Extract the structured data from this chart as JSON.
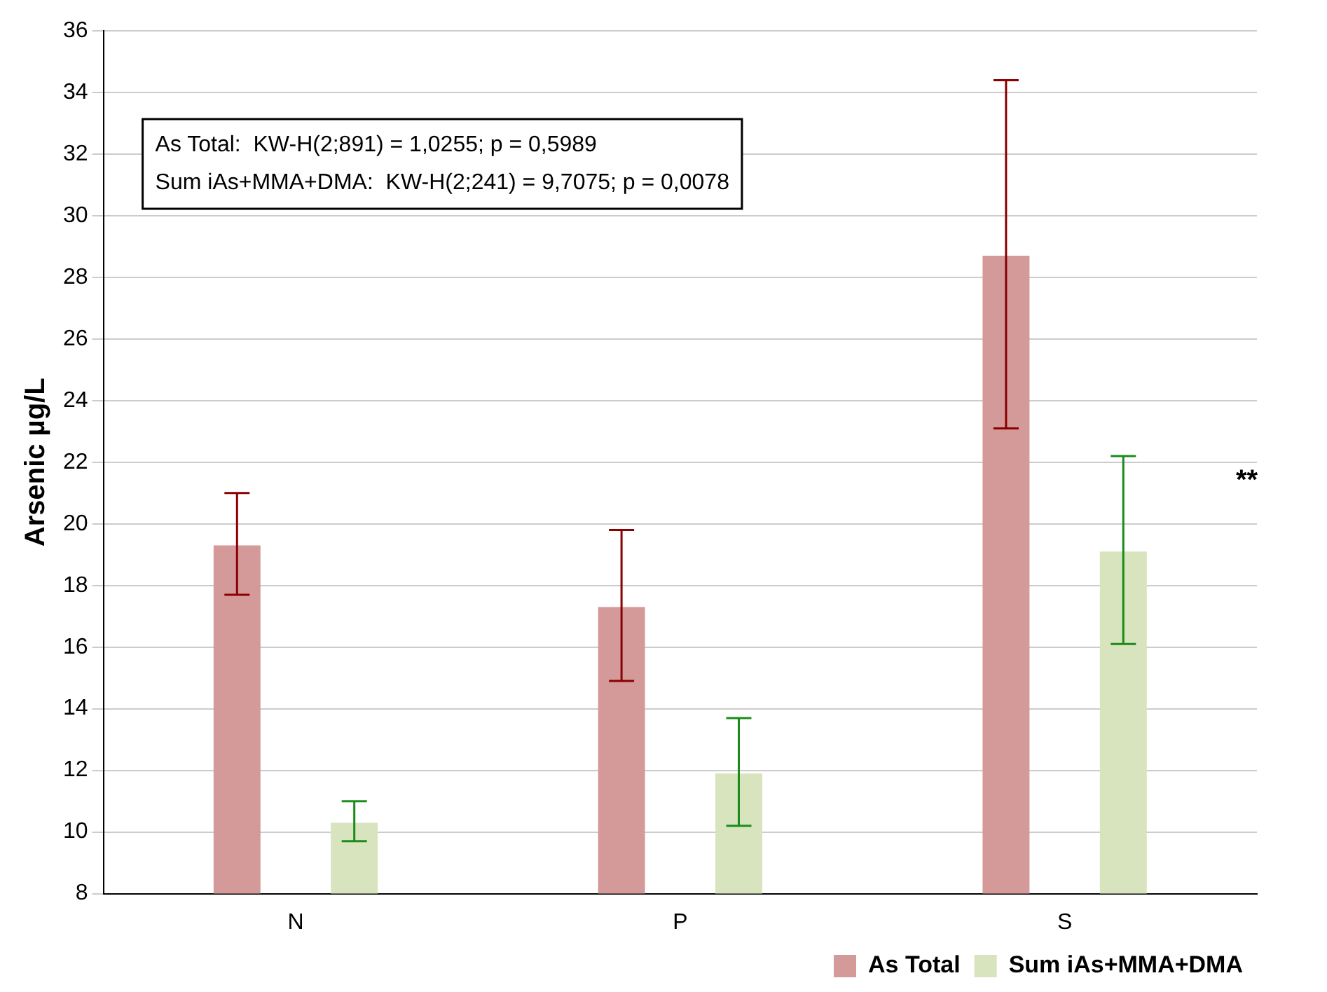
{
  "chart_data": {
    "type": "bar",
    "ylabel": "Arsenic µg/L",
    "categories": [
      "N",
      "P",
      "S"
    ],
    "series": [
      {
        "name": "As Total",
        "color": "#d49a9a",
        "values": [
          19.3,
          17.3,
          28.7
        ],
        "errors": [
          [
            17.7,
            21.0
          ],
          [
            14.9,
            19.8
          ],
          [
            23.1,
            34.4
          ]
        ]
      },
      {
        "name": "Sum iAs+MMA+DMA",
        "color": "#d7e4bd",
        "values": [
          10.3,
          11.9,
          19.1
        ],
        "errors": [
          [
            9.7,
            11.0
          ],
          [
            10.2,
            13.7
          ],
          [
            16.1,
            22.2
          ]
        ]
      }
    ],
    "ylim": [
      8,
      36
    ],
    "yticks": [
      8,
      10,
      12,
      14,
      16,
      18,
      20,
      22,
      24,
      26,
      28,
      30,
      32,
      34,
      36
    ],
    "grid": "y",
    "legend": "bottom right",
    "annotations": [
      "As Total:  KW-H(2;891) = 1,0255; p = 0,5989",
      "Sum iAs+MMA+DMA:  KW-H(2;241) = 9,7075; p = 0,0078",
      "**"
    ]
  }
}
